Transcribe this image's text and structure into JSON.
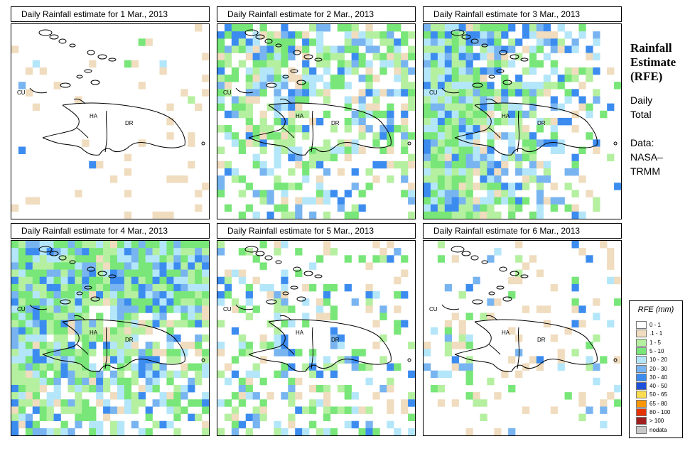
{
  "panels": [
    {
      "title": "Daily Rainfall estimate for  1 Mar., 2013",
      "intensity": 0.05,
      "wet_zone": "none"
    },
    {
      "title": "Daily Rainfall estimate for  2 Mar., 2013",
      "intensity": 0.45,
      "wet_zone": "north"
    },
    {
      "title": "Daily Rainfall estimate for  3 Mar., 2013",
      "intensity": 0.55,
      "wet_zone": "west"
    },
    {
      "title": "Daily Rainfall estimate for  4 Mar., 2013",
      "intensity": 0.6,
      "wet_zone": "west-north"
    },
    {
      "title": "Daily Rainfall estimate for  5 Mar., 2013",
      "intensity": 0.3,
      "wet_zone": "south"
    },
    {
      "title": "Daily Rainfall estimate for  6 Mar., 2013",
      "intensity": 0.2,
      "wet_zone": "southwest"
    }
  ],
  "map_labels": {
    "cuba": "CU",
    "haiti": "HA",
    "dominican_republic": "DR"
  },
  "side": {
    "title_line1": "Rainfall",
    "title_line2": "Estimate",
    "title_line3": "(RFE)",
    "daily": "Daily",
    "total": "Total",
    "data": "Data:",
    "nasa": "NASA–",
    "trmm": "TRMM"
  },
  "legend": {
    "title": "RFE (mm)",
    "items": [
      {
        "label": "0 - 1",
        "color": "#ffffff"
      },
      {
        "label": ".1 - 1",
        "color": "#f0dcbe"
      },
      {
        "label": "1 - 5",
        "color": "#b4f0a0"
      },
      {
        "label": "5 - 10",
        "color": "#78e678"
      },
      {
        "label": "10 - 20",
        "color": "#b4e6fa"
      },
      {
        "label": "20 - 30",
        "color": "#78b4f0"
      },
      {
        "label": "30 - 40",
        "color": "#3c8cf0"
      },
      {
        "label": "40 - 50",
        "color": "#1e50dc"
      },
      {
        "label": "50 - 65",
        "color": "#fadc50"
      },
      {
        "label": "65 - 80",
        "color": "#fa9600"
      },
      {
        "label": "80 - 100",
        "color": "#e63200"
      },
      {
        "label": "> 100",
        "color": "#a01e1e"
      },
      {
        "label": "nodata",
        "color": "#c8c8c8"
      }
    ]
  }
}
